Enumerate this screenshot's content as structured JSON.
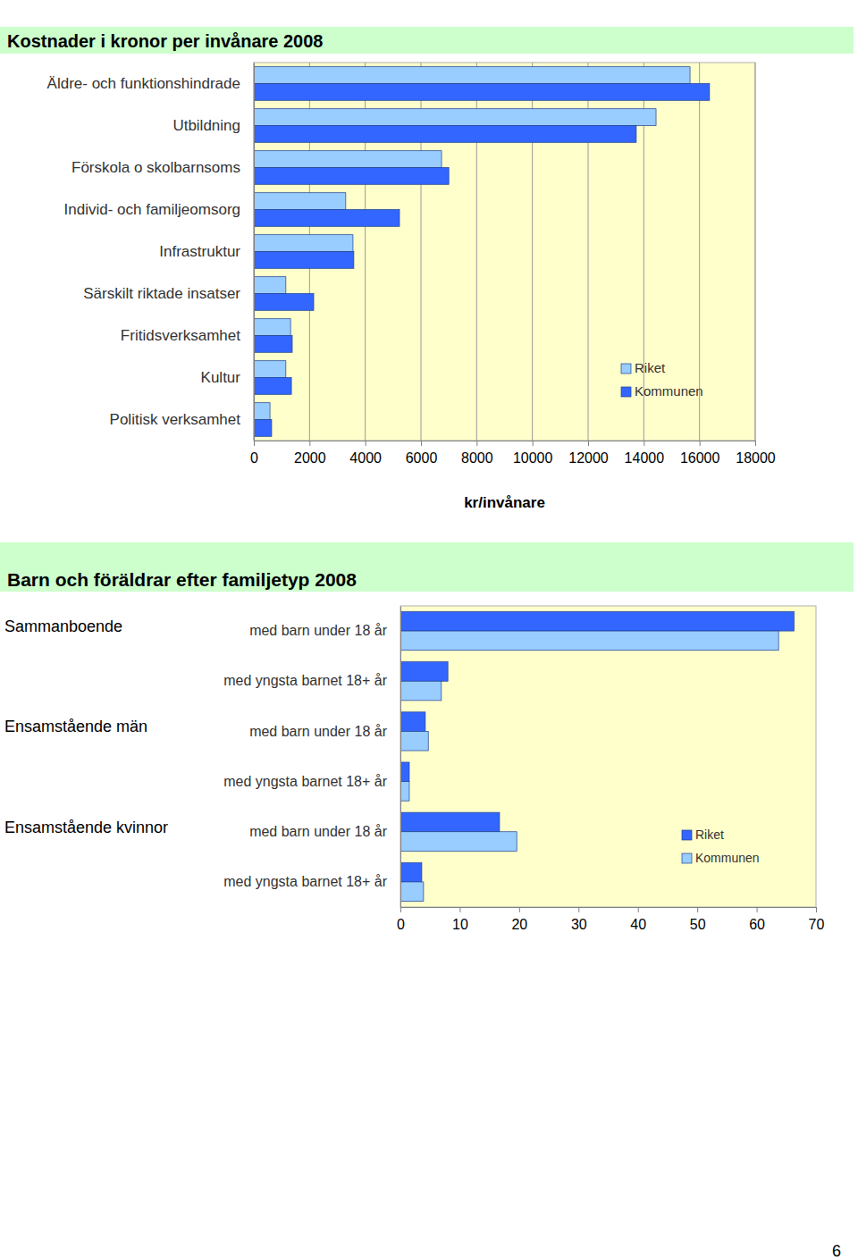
{
  "chart_data": [
    {
      "type": "bar",
      "orientation": "horizontal",
      "title": "Kostnader i kronor per invånare 2008",
      "x_label": "kr/invånare",
      "categories": [
        "Äldre- och funktionshindrade",
        "Utbildning",
        "Förskola o skolbarnsoms",
        "Individ- och familjeomsorg",
        "Infrastruktur",
        "Särskilt riktade insatser",
        "Fritidsverksamhet",
        "Kultur",
        "Politisk verksamhet"
      ],
      "series": [
        {
          "name": "Riket",
          "color": "#99ccff",
          "values": [
            15660,
            14440,
            6740,
            3300,
            3560,
            1150,
            1320,
            1150,
            580
          ]
        },
        {
          "name": "Kommunen",
          "color": "#3366ff",
          "values": [
            16360,
            13730,
            7000,
            5230,
            3590,
            2150,
            1380,
            1350,
            640
          ]
        }
      ],
      "xlim": [
        0,
        18000
      ],
      "xticks": [
        0,
        2000,
        4000,
        6000,
        8000,
        10000,
        12000,
        14000,
        16000,
        18000
      ],
      "grid": true,
      "legend": "lower right"
    },
    {
      "type": "bar",
      "orientation": "horizontal",
      "title": "Barn och föräldrar efter familjetyp 2008",
      "groups": [
        "Sammanboende",
        null,
        "Ensamstående män",
        null,
        "Ensamstående kvinnor",
        null
      ],
      "categories": [
        "med barn under 18 år",
        "med yngsta barnet 18+ år",
        "med barn under 18 år",
        "med yngsta barnet 18+ år",
        "med barn under 18 år",
        "med yngsta barnet 18+ år"
      ],
      "series": [
        {
          "name": "Riket",
          "color": "#3366ff",
          "values": [
            66.3,
            8.0,
            4.2,
            1.5,
            16.7,
            3.6
          ]
        },
        {
          "name": "Kommunen",
          "color": "#99ccff",
          "values": [
            63.7,
            6.9,
            4.7,
            1.5,
            19.6,
            3.9
          ]
        }
      ],
      "xlim": [
        0,
        70
      ],
      "xticks": [
        0,
        10,
        20,
        30,
        40,
        50,
        60,
        70
      ],
      "grid": false,
      "legend": "lower right"
    }
  ],
  "page": {
    "number": "6"
  }
}
